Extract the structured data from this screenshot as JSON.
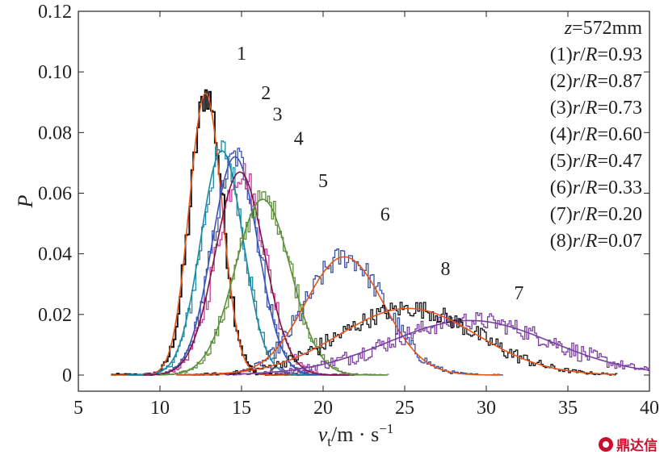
{
  "chart_data": {
    "type": "line",
    "title": "",
    "xlabel": "v_t/m · s^-1",
    "xlabel_main": "v",
    "xlabel_sub": "t",
    "xlabel_rest": "/m · s",
    "xlabel_sup": "−1",
    "ylabel": "P",
    "xlim": [
      5,
      40
    ],
    "ylim": [
      0,
      0.12
    ],
    "x_ticks": [
      "5",
      "10",
      "15",
      "20",
      "25",
      "30",
      "35",
      "40"
    ],
    "y_ticks": [
      "0",
      "0.02",
      "0.04",
      "0.06",
      "0.08",
      "0.10",
      "0.12"
    ],
    "grid": false,
    "legend_position": "top-right",
    "legend_lines": [
      "z=572mm",
      "(1)r/R=0.93",
      "(2)r/R=0.87",
      "(3)r/R=0.73",
      "(4)r/R=0.60",
      "(5)r/R=0.47",
      "(6)r/R=0.33",
      "(7)r/R=0.20",
      "(8)r/R=0.07"
    ],
    "series": [
      {
        "label": "1",
        "r_over_R": 0.93,
        "color": "#111111",
        "fit_color": "#e8541a",
        "peak_x": 12.8,
        "peak_y": 0.093,
        "spread": 1.0,
        "noise": 0.006,
        "x_range": [
          7,
          19
        ],
        "label_pos": [
          15.0,
          0.104
        ]
      },
      {
        "label": "2",
        "r_over_R": 0.87,
        "color": "#1b8aa6",
        "fit_color": "#1b8aa6",
        "peak_x": 13.8,
        "peak_y": 0.074,
        "spread": 1.3,
        "noise": 0.005,
        "x_range": [
          8,
          21
        ],
        "label_pos": [
          16.5,
          0.091
        ]
      },
      {
        "label": "3",
        "r_over_R": 0.73,
        "color": "#3a55b4",
        "fit_color": "#3a55b4",
        "peak_x": 14.6,
        "peak_y": 0.072,
        "spread": 1.4,
        "noise": 0.005,
        "x_range": [
          9,
          22
        ],
        "label_pos": [
          17.2,
          0.084
        ]
      },
      {
        "label": "4",
        "r_over_R": 0.6,
        "color": "#c23b9a",
        "fit_color": "#7a1440",
        "peak_x": 14.9,
        "peak_y": 0.067,
        "spread": 1.5,
        "noise": 0.005,
        "x_range": [
          9,
          22
        ],
        "label_pos": [
          18.5,
          0.076
        ]
      },
      {
        "label": "5",
        "r_over_R": 0.47,
        "color": "#5e8f3c",
        "fit_color": "#5e8f3c",
        "peak_x": 16.3,
        "peak_y": 0.058,
        "spread": 1.7,
        "noise": 0.004,
        "x_range": [
          10,
          24
        ],
        "label_pos": [
          20.0,
          0.062
        ]
      },
      {
        "label": "6",
        "r_over_R": 0.33,
        "color": "#3a4fa0",
        "fit_color": "#e8541a",
        "peak_x": 21.3,
        "peak_y": 0.039,
        "spread": 2.4,
        "noise": 0.004,
        "x_range": [
          11,
          31
        ],
        "label_pos": [
          23.8,
          0.051
        ]
      },
      {
        "label": "7",
        "r_over_R": 0.2,
        "color": "#7b3fa0",
        "fit_color": "#7b3fa0",
        "peak_x": 29.0,
        "peak_y": 0.018,
        "spread": 5.0,
        "noise": 0.003,
        "x_range": [
          14,
          40
        ],
        "label_pos": [
          32.0,
          0.025
        ]
      },
      {
        "label": "8",
        "r_over_R": 0.07,
        "color": "#111111",
        "fit_color": "#e8541a",
        "peak_x": 25.2,
        "peak_y": 0.022,
        "spread": 4.2,
        "noise": 0.003,
        "x_range": [
          12,
          38
        ],
        "label_pos": [
          27.5,
          0.033
        ]
      }
    ]
  },
  "watermark": {
    "text": "鼎达信"
  }
}
